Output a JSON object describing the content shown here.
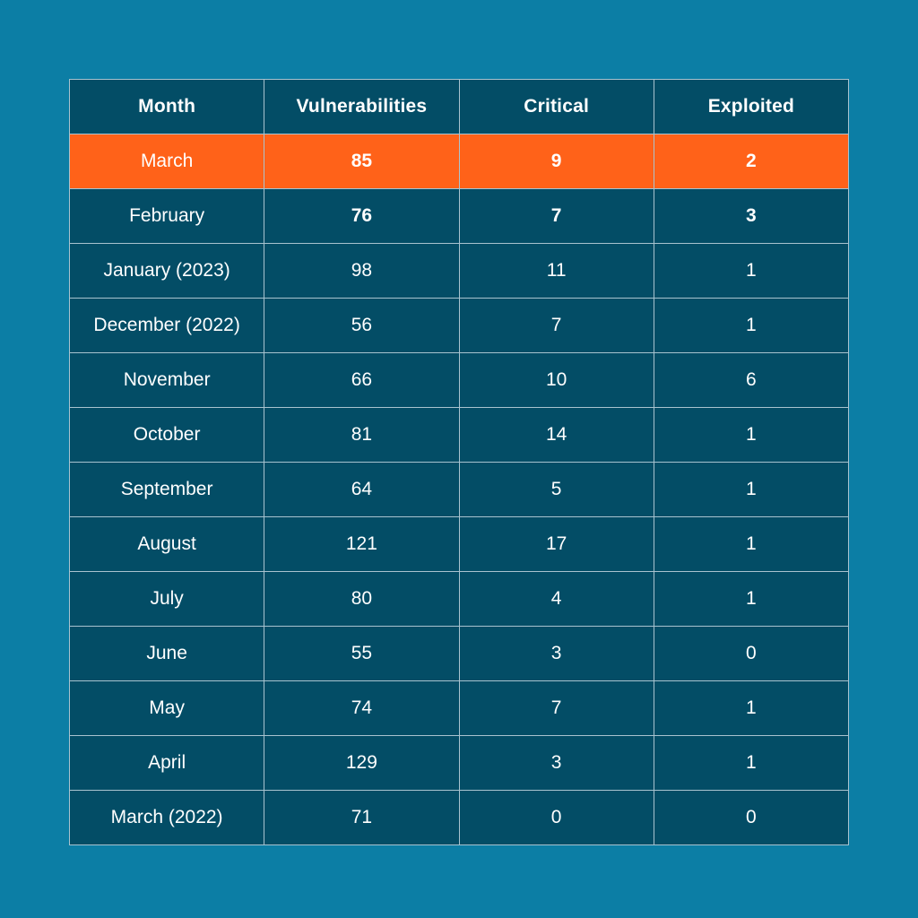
{
  "chart_data": {
    "type": "table",
    "columns": [
      "Month",
      "Vulnerabilities",
      "Critical",
      "Exploited"
    ],
    "rows": [
      {
        "month": "March",
        "vulnerabilities": "85",
        "critical": "9",
        "exploited": "2",
        "highlight": true,
        "bold": true
      },
      {
        "month": "February",
        "vulnerabilities": "76",
        "critical": "7",
        "exploited": "3",
        "highlight": false,
        "bold": true
      },
      {
        "month": "January (2023)",
        "vulnerabilities": "98",
        "critical": "11",
        "exploited": "1",
        "highlight": false,
        "bold": false
      },
      {
        "month": "December (2022)",
        "vulnerabilities": "56",
        "critical": "7",
        "exploited": "1",
        "highlight": false,
        "bold": false
      },
      {
        "month": "November",
        "vulnerabilities": "66",
        "critical": "10",
        "exploited": "6",
        "highlight": false,
        "bold": false
      },
      {
        "month": "October",
        "vulnerabilities": "81",
        "critical": "14",
        "exploited": "1",
        "highlight": false,
        "bold": false
      },
      {
        "month": "September",
        "vulnerabilities": "64",
        "critical": "5",
        "exploited": "1",
        "highlight": false,
        "bold": false
      },
      {
        "month": "August",
        "vulnerabilities": "121",
        "critical": "17",
        "exploited": "1",
        "highlight": false,
        "bold": false
      },
      {
        "month": "July",
        "vulnerabilities": "80",
        "critical": "4",
        "exploited": "1",
        "highlight": false,
        "bold": false
      },
      {
        "month": "June",
        "vulnerabilities": "55",
        "critical": "3",
        "exploited": "0",
        "highlight": false,
        "bold": false
      },
      {
        "month": "May",
        "vulnerabilities": "74",
        "critical": "7",
        "exploited": "1",
        "highlight": false,
        "bold": false
      },
      {
        "month": "April",
        "vulnerabilities": "129",
        "critical": "3",
        "exploited": "1",
        "highlight": false,
        "bold": false
      },
      {
        "month": "March (2022)",
        "vulnerabilities": "71",
        "critical": "0",
        "exploited": "0",
        "highlight": false,
        "bold": false
      }
    ]
  },
  "colors": {
    "background": "#0c7ea5",
    "table_fill": "#034d66",
    "highlight": "#ff6219",
    "border": "#a9c3cf",
    "text": "#ffffff"
  }
}
